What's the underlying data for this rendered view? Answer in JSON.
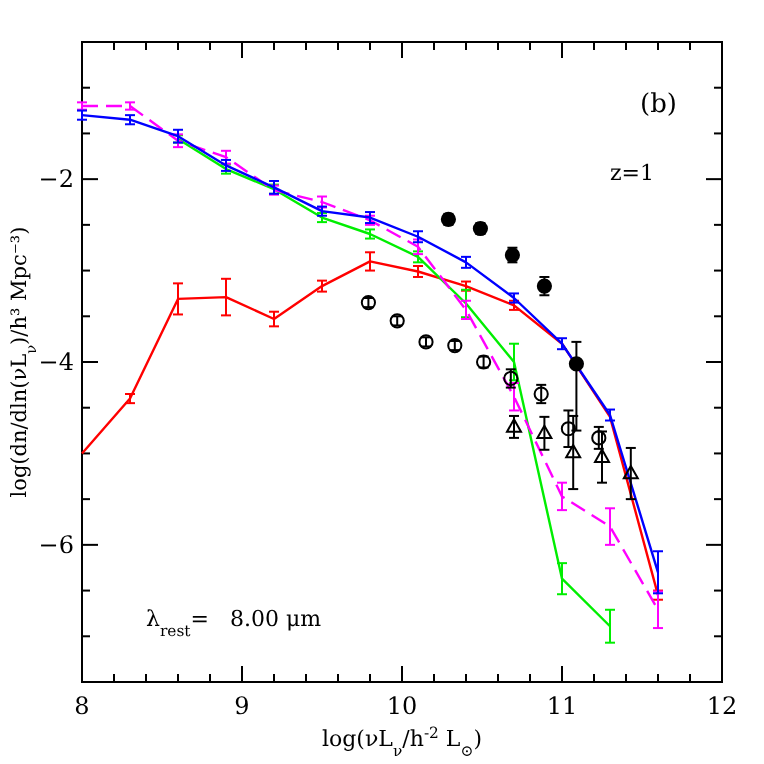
{
  "chart_data": {
    "type": "line",
    "xlabel": "log(νL$_{ν}$/h$^{-2}$ L$_{⊙}$)",
    "ylabel": "log(dn/dln(νL$_{ν}$)/h³ Mpc⁻³)",
    "annotations": [
      "(b)",
      "z=1",
      "λ$_{rest}$=   8.00 μm"
    ],
    "xlim": [
      8,
      12
    ],
    "ylim": [
      -7.5,
      -0.5
    ],
    "xticks": [
      8,
      {
        "value": 8.2,
        "label": null
      },
      {
        "value": 8.4,
        "label": null
      },
      {
        "value": 8.6,
        "label": null
      },
      {
        "value": 8.8,
        "label": null
      },
      9,
      {
        "value": 9.2,
        "label": null
      },
      {
        "value": 9.4,
        "label": null
      },
      {
        "value": 9.6,
        "label": null
      },
      {
        "value": 9.8,
        "label": null
      },
      10,
      {
        "value": 10.2,
        "label": null
      },
      {
        "value": 10.4,
        "label": null
      },
      {
        "value": 10.6,
        "label": null
      },
      {
        "value": 10.8,
        "label": null
      },
      11,
      {
        "value": 11.2,
        "label": null
      },
      {
        "value": 11.4,
        "label": null
      },
      {
        "value": 11.6,
        "label": null
      },
      {
        "value": 11.8,
        "label": null
      },
      12
    ],
    "yticks": [
      {
        "value": -7.5,
        "label": null
      },
      {
        "value": -7,
        "label": null
      },
      {
        "value": -6.5,
        "label": null
      },
      -6,
      {
        "value": -5.5,
        "label": null
      },
      {
        "value": -5,
        "label": null
      },
      {
        "value": -4.5,
        "label": null
      },
      -4,
      {
        "value": -3.5,
        "label": null
      },
      {
        "value": -3,
        "label": null
      },
      {
        "value": -2.5,
        "label": null
      },
      -2,
      {
        "value": -1.5,
        "label": null
      },
      {
        "value": -1,
        "label": null
      },
      {
        "value": -0.5,
        "label": null
      }
    ],
    "grid": false,
    "x": [
      8,
      8.3,
      8.6,
      8.9,
      9.2,
      9.5,
      9.8,
      10.1,
      10.4,
      10.7,
      11.0,
      11.3,
      11.6
    ],
    "series": [
      {
        "color": "#ff0000",
        "line_style": "solid",
        "marker": "none",
        "values": [
          -5.0,
          -4.4,
          -3.31,
          -3.29,
          -3.53,
          -3.17,
          -2.9,
          -3.01,
          -3.17,
          -3.38,
          -3.8,
          -4.6,
          -6.55
        ],
        "errors": [
          null,
          0.05,
          0.17,
          0.2,
          0.08,
          0.06,
          0.1,
          0.06,
          0.05,
          0.05,
          null,
          null,
          0.05
        ]
      },
      {
        "color": "#00ee00",
        "line_style": "solid",
        "marker": "none",
        "values": [
          -1.56,
          -1.89,
          -2.11,
          -2.42,
          -2.6,
          -2.85,
          -3.36,
          -4.0,
          -6.37,
          -6.89
        ],
        "x": [
          8.6,
          8.9,
          9.2,
          9.5,
          9.8,
          10.1,
          10.4,
          10.7,
          11.0,
          11.3
        ],
        "errors": [
          0.04,
          0.05,
          0.05,
          0.05,
          0.05,
          0.06,
          0.15,
          0.2,
          0.17,
          0.18
        ]
      },
      {
        "color": "#ff00ff",
        "line_style": "dashed",
        "marker": "none",
        "values": [
          -1.2,
          -1.2,
          -1.58,
          -1.76,
          -2.12,
          -2.25,
          -2.45,
          -2.74,
          -3.43,
          -4.38,
          -5.47,
          -5.8,
          -6.71
        ],
        "errors": [
          0.04,
          0.04,
          0.07,
          0.07,
          0.05,
          0.06,
          0.05,
          0.08,
          0.1,
          0.15,
          0.15,
          0.2,
          0.2
        ]
      },
      {
        "color": "#0000ff",
        "line_style": "solid",
        "marker": "none",
        "values": [
          -1.3,
          -1.35,
          -1.53,
          -1.85,
          -2.09,
          -2.35,
          -2.42,
          -2.63,
          -2.91,
          -3.3,
          -3.8,
          -4.58,
          -6.3
        ],
        "errors": [
          0.05,
          0.05,
          0.07,
          0.06,
          0.07,
          0.05,
          0.06,
          0.06,
          0.06,
          0.05,
          0.06,
          0.06,
          0.23
        ]
      },
      {
        "type": "scatter",
        "color": "#000000",
        "marker": "circle",
        "x": [
          10.29,
          10.49,
          10.69,
          10.89,
          11.09
        ],
        "values": [
          -2.44,
          -2.54,
          -2.83,
          -3.17,
          -4.02
        ],
        "errors": [
          0.06,
          0.06,
          0.08,
          0.1,
          [
            -4.75,
            -3.78
          ]
        ]
      },
      {
        "type": "scatter",
        "color": "#000000",
        "marker": "circle",
        "x": [
          9.79,
          9.97,
          10.15,
          10.33,
          10.51,
          10.68,
          10.87,
          11.04,
          11.23
        ],
        "values": [
          -3.35,
          -3.55,
          -3.78,
          -3.82,
          -4.0,
          -4.18,
          -4.35,
          -4.73,
          -4.83
        ],
        "errors": [
          0.05,
          0.05,
          0.05,
          0.05,
          0.06,
          0.1,
          0.1,
          0.2,
          0.12
        ]
      },
      {
        "type": "scatter",
        "color": "#000000",
        "marker": "triangle",
        "x": [
          10.7,
          10.89,
          11.07,
          11.25,
          11.43
        ],
        "values": [
          -4.71,
          -4.78,
          -4.99,
          -5.04,
          -5.22
        ],
        "errors": [
          0.12,
          0.18,
          0.4,
          0.28,
          0.28
        ]
      }
    ]
  }
}
